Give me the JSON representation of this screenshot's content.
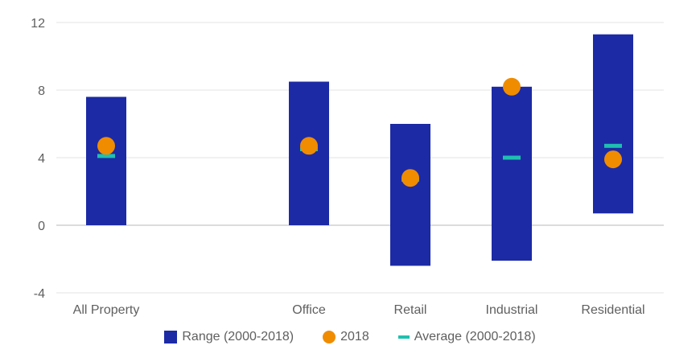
{
  "chart_data": {
    "type": "range-bar",
    "categories": [
      "All Property",
      "Office",
      "Retail",
      "Industrial",
      "Residential"
    ],
    "series": [
      {
        "name": "Range (2000-2018)",
        "kind": "range",
        "low": [
          0,
          0,
          -2.4,
          -2.1,
          0.7
        ],
        "high": [
          7.6,
          8.5,
          6.0,
          8.2,
          11.3
        ]
      },
      {
        "name": "2018",
        "kind": "dot",
        "values": [
          4.7,
          4.7,
          2.8,
          8.2,
          3.9
        ]
      },
      {
        "name": "Average (2000-2018)",
        "kind": "marker",
        "values": [
          4.1,
          4.5,
          2.7,
          4.0,
          4.7
        ]
      }
    ],
    "y_ticks": [
      "12",
      "8",
      "4",
      "0",
      "-4"
    ],
    "ylim": [
      -4,
      12
    ],
    "grid": true,
    "legend_position": "bottom",
    "colors": {
      "range": "#1c2aa5",
      "dot": "#f08c00",
      "avg": "#1ec0b0"
    }
  }
}
